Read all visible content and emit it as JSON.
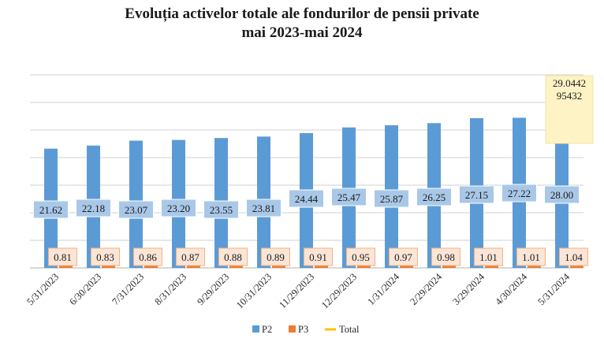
{
  "chart_data": {
    "type": "bar",
    "title_lines": [
      "Evoluția activelor totale ale fondurilor de pensii private",
      "mai 2023-mai 2024"
    ],
    "categories": [
      "5/31/2023",
      "6/30/2023",
      "7/31/2023",
      "8/31/2023",
      "9/29/2023",
      "10/31/2023",
      "11/29/2023",
      "12/29/2023",
      "1/31/2024",
      "2/29/2024",
      "3/29/2024",
      "4/30/2024",
      "5/31/2024"
    ],
    "series": [
      {
        "name": "P2",
        "color": "#5b9bd5",
        "values": [
          21.62,
          22.18,
          23.07,
          23.2,
          23.55,
          23.81,
          24.44,
          25.47,
          25.87,
          26.25,
          27.15,
          27.22,
          28.0
        ],
        "labels": [
          "21.62",
          "22.18",
          "23.07",
          "23.20",
          "23.55",
          "23.81",
          "24.44",
          "25.47",
          "25.87",
          "26.25",
          "27.15",
          "27.22",
          "28.00"
        ]
      },
      {
        "name": "P3",
        "color": "#ed7d31",
        "values": [
          0.81,
          0.83,
          0.86,
          0.87,
          0.88,
          0.89,
          0.91,
          0.95,
          0.97,
          0.98,
          1.01,
          1.01,
          1.04
        ],
        "labels": [
          "0.81",
          "0.83",
          "0.86",
          "0.87",
          "0.88",
          "0.89",
          "0.91",
          "0.95",
          "0.97",
          "0.98",
          "1.01",
          "1.01",
          "1.04"
        ]
      },
      {
        "name": "Total",
        "color": "#ffc000",
        "values": [
          null,
          null,
          null,
          null,
          null,
          null,
          null,
          null,
          null,
          null,
          null,
          null,
          29.044295432
        ]
      }
    ],
    "callout": {
      "series": "Total",
      "index": 12,
      "lines": [
        "29.0442",
        "95432"
      ]
    },
    "legend": [
      "P2",
      "P3",
      "Total"
    ],
    "legend_position": "bottom",
    "ylim": [
      0,
      36
    ],
    "grid_step": 5,
    "grid": true
  }
}
